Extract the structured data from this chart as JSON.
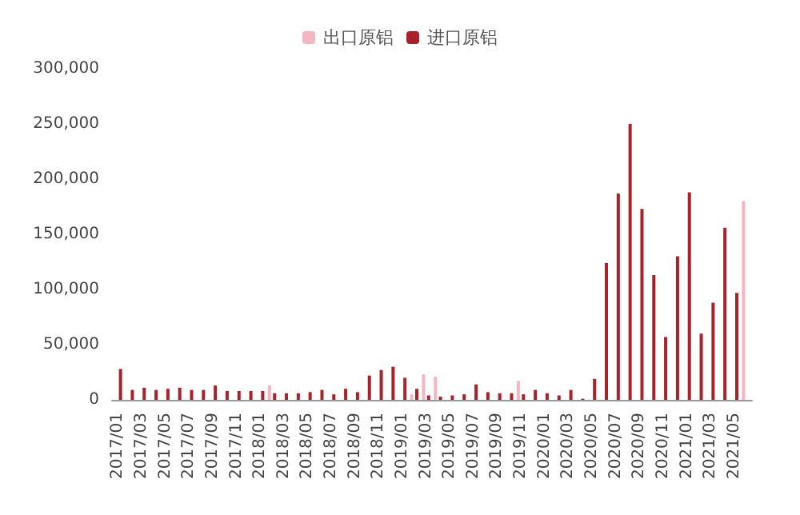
{
  "chart_data": {
    "type": "bar",
    "categories": [
      "2017/01",
      null,
      "2017/03",
      null,
      "2017/05",
      null,
      "2017/07",
      null,
      "2017/09",
      null,
      "2017/11",
      null,
      "2018/01",
      null,
      "2018/03",
      null,
      "2018/05",
      null,
      "2018/07",
      null,
      "2018/09",
      null,
      "2018/11",
      null,
      "2019/01",
      null,
      "2019/03",
      null,
      "2019/05",
      null,
      "2019/07",
      null,
      "2019/09",
      null,
      "2019/11",
      null,
      "2020/01",
      null,
      "2020/03",
      null,
      "2020/05",
      null,
      "2020/07",
      null,
      "2020/09",
      null,
      "2020/11",
      null,
      "2021/01",
      null,
      "2021/03",
      null,
      "2021/05",
      null
    ],
    "series": [
      {
        "name": "出口原铝",
        "color": "#f4b6c2",
        "values": [
          null,
          null,
          null,
          null,
          null,
          null,
          null,
          null,
          null,
          null,
          null,
          null,
          null,
          13000,
          null,
          null,
          null,
          null,
          null,
          null,
          null,
          null,
          null,
          null,
          null,
          5000,
          23000,
          21000,
          null,
          null,
          null,
          null,
          null,
          null,
          17000,
          null,
          null,
          null,
          null,
          null,
          null,
          null,
          null,
          null,
          null,
          null,
          null,
          null,
          null,
          null,
          null,
          null,
          null,
          180000
        ]
      },
      {
        "name": "进口原铝",
        "color": "#a8222b",
        "values": [
          28000,
          9000,
          11000,
          9000,
          10000,
          11000,
          9000,
          9000,
          13000,
          8000,
          8000,
          8000,
          8000,
          6000,
          6000,
          6000,
          7000,
          9000,
          5000,
          10000,
          7000,
          22000,
          27000,
          30000,
          20000,
          10000,
          4000,
          3000,
          4000,
          5000,
          14000,
          7000,
          6000,
          6000,
          5000,
          9000,
          6000,
          4000,
          9000,
          1000,
          19000,
          124000,
          187000,
          250000,
          173000,
          113000,
          57000,
          130000,
          188000,
          60000,
          88000,
          156000,
          97000,
          null
        ]
      }
    ],
    "ylim": [
      0,
      300000
    ],
    "yticks": [
      0,
      {
        "value": 50000,
        "label": "50,000"
      },
      {
        "value": 100000,
        "label": "100,000"
      },
      {
        "value": 150000,
        "label": "150,000"
      },
      {
        "value": 200000,
        "label": "200,000"
      },
      {
        "value": 250000,
        "label": "250,000"
      },
      {
        "value": 300000,
        "label": "300,000"
      }
    ],
    "grid": false,
    "legend": "top"
  }
}
